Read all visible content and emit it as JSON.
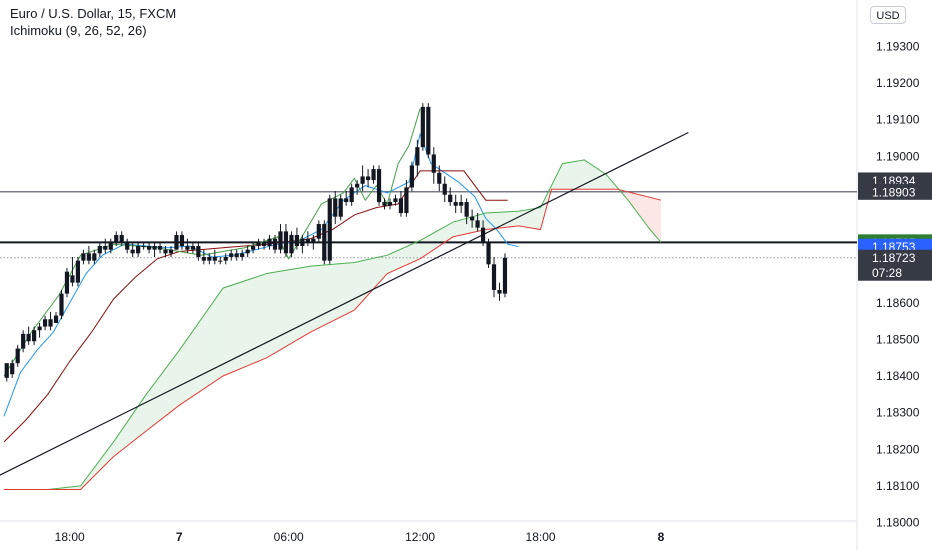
{
  "header": {
    "symbol": "Euro / U.S. Dollar, 15, FXCM",
    "indicator": "Ichimoku (9, 26, 52, 26)"
  },
  "currency_button": "USD",
  "price_labels": [
    {
      "text": "1.18934",
      "kind": "dark",
      "value": 1.18934
    },
    {
      "text": "1.18903",
      "kind": "dark",
      "value": 1.18903
    },
    {
      "text": "1.18765",
      "kind": "green",
      "value": 1.18765
    },
    {
      "text": "1.18753",
      "kind": "blue",
      "value": 1.18753
    },
    {
      "text": "1.18723",
      "kind": "dark",
      "value": 1.18723
    },
    {
      "text": "07:28",
      "kind": "dark-sub",
      "value": 1.18723
    }
  ],
  "colors": {
    "bull": "#131722",
    "bear": "#131722",
    "tenkan": "#2196f3",
    "kijun": "#880e0e",
    "chikou": "#43a047",
    "spanA": "#4caf50",
    "spanB": "#e53935",
    "cloud_up": "rgba(76,175,80,0.12)",
    "cloud_down": "rgba(229,57,53,0.12)",
    "label_dark": "#363a45",
    "label_green": "#2e7d32",
    "label_blue": "#2962ff"
  },
  "chart_data": {
    "type": "candlestick",
    "title": "Euro / U.S. Dollar, 15, FXCM",
    "ylim": [
      1.18,
      1.194
    ],
    "y_ticks": [
      "1.18000",
      "1.18100",
      "1.18200",
      "1.18300",
      "1.18400",
      "1.18500",
      "1.18600",
      "1.19000",
      "1.19100",
      "1.19200",
      "1.19300"
    ],
    "x_ticks": [
      {
        "label": "18:00",
        "bar": 12
      },
      {
        "label": "7",
        "bar": 32
      },
      {
        "label": "06:00",
        "bar": 52
      },
      {
        "label": "12:00",
        "bar": 76
      },
      {
        "label": "18:00",
        "bar": 98
      },
      {
        "label": "8",
        "bar": 120
      }
    ],
    "candles": [
      [
        1.18395,
        1.18435,
        1.18385,
        1.18435
      ],
      [
        1.18405,
        1.18445,
        1.18395,
        1.18435
      ],
      [
        1.18435,
        1.18485,
        1.18425,
        1.18475
      ],
      [
        1.18475,
        1.18525,
        1.18465,
        1.18515
      ],
      [
        1.18515,
        1.18535,
        1.18485,
        1.18495
      ],
      [
        1.18495,
        1.18535,
        1.18485,
        1.18525
      ],
      [
        1.18525,
        1.18545,
        1.18505,
        1.18535
      ],
      [
        1.18535,
        1.18565,
        1.18525,
        1.18555
      ],
      [
        1.18555,
        1.18575,
        1.18525,
        1.18535
      ],
      [
        1.18545,
        1.18575,
        1.18545,
        1.18565
      ],
      [
        1.18565,
        1.18635,
        1.18555,
        1.18625
      ],
      [
        1.18625,
        1.18695,
        1.18615,
        1.18685
      ],
      [
        1.18675,
        1.18725,
        1.18645,
        1.18655
      ],
      [
        1.18655,
        1.18725,
        1.18645,
        1.18715
      ],
      [
        1.18715,
        1.18745,
        1.18705,
        1.18735
      ],
      [
        1.18735,
        1.18755,
        1.18705,
        1.18715
      ],
      [
        1.18715,
        1.18745,
        1.18705,
        1.18735
      ],
      [
        1.18735,
        1.18765,
        1.18725,
        1.18755
      ],
      [
        1.18755,
        1.18775,
        1.18735,
        1.18745
      ],
      [
        1.18745,
        1.18775,
        1.18735,
        1.18765
      ],
      [
        1.18765,
        1.18795,
        1.18755,
        1.18785
      ],
      [
        1.18785,
        1.18795,
        1.18755,
        1.18765
      ],
      [
        1.18765,
        1.18775,
        1.18735,
        1.18745
      ],
      [
        1.18745,
        1.18765,
        1.18725,
        1.18735
      ],
      [
        1.18735,
        1.18765,
        1.18725,
        1.18755
      ],
      [
        1.18755,
        1.18765,
        1.18745,
        1.18755
      ],
      [
        1.18755,
        1.18765,
        1.18735,
        1.18745
      ],
      [
        1.18745,
        1.18765,
        1.18725,
        1.18755
      ],
      [
        1.18755,
        1.18765,
        1.18735,
        1.18745
      ],
      [
        1.18745,
        1.18755,
        1.18725,
        1.18735
      ],
      [
        1.18735,
        1.18755,
        1.18725,
        1.18745
      ],
      [
        1.18745,
        1.18795,
        1.18745,
        1.18785
      ],
      [
        1.18785,
        1.18795,
        1.18745,
        1.18755
      ],
      [
        1.18755,
        1.18775,
        1.18735,
        1.18745
      ],
      [
        1.18745,
        1.18765,
        1.18735,
        1.18755
      ],
      [
        1.18755,
        1.18765,
        1.18715,
        1.18725
      ],
      [
        1.18725,
        1.18745,
        1.18705,
        1.18715
      ],
      [
        1.18715,
        1.18735,
        1.18705,
        1.18725
      ],
      [
        1.18725,
        1.18745,
        1.18705,
        1.18715
      ],
      [
        1.18715,
        1.18725,
        1.18705,
        1.18715
      ],
      [
        1.18715,
        1.18735,
        1.18705,
        1.18725
      ],
      [
        1.18725,
        1.18745,
        1.18715,
        1.18735
      ],
      [
        1.18735,
        1.18745,
        1.18715,
        1.18725
      ],
      [
        1.18725,
        1.18745,
        1.18715,
        1.18735
      ],
      [
        1.18735,
        1.18755,
        1.18725,
        1.18745
      ],
      [
        1.18745,
        1.18765,
        1.18735,
        1.18755
      ],
      [
        1.18755,
        1.18775,
        1.18745,
        1.18765
      ],
      [
        1.18765,
        1.18775,
        1.18745,
        1.18755
      ],
      [
        1.18755,
        1.18785,
        1.18745,
        1.18775
      ],
      [
        1.18775,
        1.18785,
        1.18735,
        1.18745
      ],
      [
        1.18745,
        1.18815,
        1.18735,
        1.18795
      ],
      [
        1.18795,
        1.18815,
        1.18725,
        1.18735
      ],
      [
        1.18735,
        1.18795,
        1.18725,
        1.18785
      ],
      [
        1.18785,
        1.18805,
        1.18745,
        1.18755
      ],
      [
        1.18755,
        1.18785,
        1.18735,
        1.18775
      ],
      [
        1.18775,
        1.18795,
        1.18755,
        1.18765
      ],
      [
        1.18765,
        1.18785,
        1.18745,
        1.18775
      ],
      [
        1.18775,
        1.18825,
        1.18765,
        1.18815
      ],
      [
        1.18815,
        1.18825,
        1.18705,
        1.18715
      ],
      [
        1.18715,
        1.18895,
        1.18705,
        1.18885
      ],
      [
        1.18885,
        1.18905,
        1.18815,
        1.18835
      ],
      [
        1.18835,
        1.18895,
        1.18825,
        1.18885
      ],
      [
        1.18885,
        1.18905,
        1.18865,
        1.18875
      ],
      [
        1.18875,
        1.18925,
        1.18865,
        1.18915
      ],
      [
        1.18915,
        1.18935,
        1.18895,
        1.18925
      ],
      [
        1.18925,
        1.18975,
        1.18905,
        1.18945
      ],
      [
        1.18945,
        1.18965,
        1.18915,
        1.18935
      ],
      [
        1.18935,
        1.18975,
        1.18925,
        1.18965
      ],
      [
        1.18965,
        1.18975,
        1.18865,
        1.18875
      ],
      [
        1.18875,
        1.18885,
        1.18855,
        1.18865
      ],
      [
        1.18865,
        1.18885,
        1.18855,
        1.18875
      ],
      [
        1.18875,
        1.18895,
        1.18865,
        1.18885
      ],
      [
        1.18885,
        1.18905,
        1.18835,
        1.18845
      ],
      [
        1.18845,
        1.18935,
        1.18835,
        1.18915
      ],
      [
        1.18915,
        1.18985,
        1.18905,
        1.18975
      ],
      [
        1.18975,
        1.19045,
        1.18945,
        1.19025
      ],
      [
        1.19025,
        1.19145,
        1.19015,
        1.19135
      ],
      [
        1.19135,
        1.19145,
        1.18995,
        1.19005
      ],
      [
        1.19005,
        1.19025,
        1.18925,
        1.18955
      ],
      [
        1.18955,
        1.18975,
        1.18905,
        1.18925
      ],
      [
        1.18925,
        1.18945,
        1.18875,
        1.18895
      ],
      [
        1.18895,
        1.18915,
        1.18865,
        1.18875
      ],
      [
        1.18875,
        1.18895,
        1.18845,
        1.18865
      ],
      [
        1.18865,
        1.18895,
        1.18845,
        1.18875
      ],
      [
        1.18875,
        1.18885,
        1.18815,
        1.18835
      ],
      [
        1.18835,
        1.18855,
        1.18805,
        1.18825
      ],
      [
        1.18825,
        1.18845,
        1.18795,
        1.18805
      ],
      [
        1.18805,
        1.18825,
        1.18755,
        1.18765
      ],
      [
        1.18765,
        1.18775,
        1.18695,
        1.18705
      ],
      [
        1.18705,
        1.18725,
        1.18615,
        1.18635
      ],
      [
        1.18635,
        1.18655,
        1.18605,
        1.18625
      ],
      [
        1.18625,
        1.18735,
        1.18615,
        1.18723
      ]
    ],
    "series": [
      {
        "name": "tenkan",
        "color": "#2196f3",
        "points": [
          [
            0,
            1.1829
          ],
          [
            3,
            1.1841
          ],
          [
            6,
            1.1847
          ],
          [
            9,
            1.1852
          ],
          [
            12,
            1.186
          ],
          [
            15,
            1.1868
          ],
          [
            18,
            1.1873
          ],
          [
            22,
            1.1876
          ],
          [
            26,
            1.18755
          ],
          [
            30,
            1.1875
          ],
          [
            34,
            1.18755
          ],
          [
            38,
            1.18725
          ],
          [
            42,
            1.1873
          ],
          [
            46,
            1.18745
          ],
          [
            50,
            1.1876
          ],
          [
            54,
            1.1877
          ],
          [
            58,
            1.188
          ],
          [
            62,
            1.1888
          ],
          [
            66,
            1.1892
          ],
          [
            70,
            1.189
          ],
          [
            74,
            1.1893
          ],
          [
            76,
            1.1906
          ],
          [
            78,
            1.1898
          ],
          [
            80,
            1.1896
          ],
          [
            83,
            1.1893
          ],
          [
            86,
            1.1889
          ],
          [
            88,
            1.1883
          ],
          [
            90,
            1.188
          ],
          [
            92,
            1.1876
          ],
          [
            94,
            1.18753
          ]
        ]
      },
      {
        "name": "kijun",
        "color": "#880e0e",
        "points": [
          [
            0,
            1.1822
          ],
          [
            4,
            1.1828
          ],
          [
            8,
            1.1835
          ],
          [
            12,
            1.1844
          ],
          [
            16,
            1.1852
          ],
          [
            20,
            1.1861
          ],
          [
            24,
            1.1867
          ],
          [
            28,
            1.1872
          ],
          [
            32,
            1.1874
          ],
          [
            40,
            1.1875
          ],
          [
            48,
            1.1876
          ],
          [
            56,
            1.18775
          ],
          [
            60,
            1.188
          ],
          [
            64,
            1.1884
          ],
          [
            68,
            1.1886
          ],
          [
            72,
            1.1887
          ],
          [
            76,
            1.1896
          ],
          [
            80,
            1.1896
          ],
          [
            84,
            1.1896
          ],
          [
            88,
            1.1888
          ],
          [
            92,
            1.1888
          ]
        ]
      },
      {
        "name": "chikou",
        "color": "#43a047",
        "points": [
          [
            0,
            1.184
          ],
          [
            5,
            1.1852
          ],
          [
            10,
            1.1862
          ],
          [
            14,
            1.1873
          ],
          [
            20,
            1.1876
          ],
          [
            28,
            1.1875
          ],
          [
            36,
            1.1873
          ],
          [
            44,
            1.1875
          ],
          [
            50,
            1.1878
          ],
          [
            52,
            1.1872
          ],
          [
            56,
            1.1882
          ],
          [
            58,
            1.1887
          ],
          [
            62,
            1.189
          ],
          [
            64,
            1.1894
          ],
          [
            66,
            1.1888
          ],
          [
            68,
            1.1892
          ],
          [
            70,
            1.1887
          ],
          [
            72,
            1.1898
          ],
          [
            74,
            1.1903
          ],
          [
            76,
            1.1913
          ]
        ]
      },
      {
        "name": "spanA",
        "color": "#4caf50",
        "points": [
          [
            0,
            1.1809
          ],
          [
            8,
            1.1809
          ],
          [
            14,
            1.181
          ],
          [
            20,
            1.1822
          ],
          [
            26,
            1.1835
          ],
          [
            32,
            1.1847
          ],
          [
            40,
            1.1864
          ],
          [
            48,
            1.1868
          ],
          [
            56,
            1.187
          ],
          [
            64,
            1.1871
          ],
          [
            70,
            1.1873
          ],
          [
            76,
            1.1877
          ],
          [
            82,
            1.1882
          ],
          [
            88,
            1.18845
          ],
          [
            94,
            1.1885
          ],
          [
            98,
            1.1886
          ],
          [
            102,
            1.1898
          ],
          [
            106,
            1.1899
          ],
          [
            110,
            1.1895
          ],
          [
            114,
            1.1888
          ],
          [
            118,
            1.188
          ],
          [
            120,
            1.18765
          ]
        ]
      },
      {
        "name": "spanB",
        "color": "#e53935",
        "points": [
          [
            0,
            1.1809
          ],
          [
            14,
            1.1809
          ],
          [
            20,
            1.1818
          ],
          [
            26,
            1.1825
          ],
          [
            32,
            1.1832
          ],
          [
            40,
            1.184
          ],
          [
            48,
            1.1845
          ],
          [
            56,
            1.1852
          ],
          [
            64,
            1.1858
          ],
          [
            70,
            1.1868
          ],
          [
            76,
            1.1872
          ],
          [
            82,
            1.1878
          ],
          [
            88,
            1.188
          ],
          [
            94,
            1.1881
          ],
          [
            98,
            1.188
          ],
          [
            100,
            1.1891
          ],
          [
            106,
            1.1891
          ],
          [
            112,
            1.1891
          ],
          [
            120,
            1.1888
          ]
        ]
      }
    ],
    "horizontal_lines": [
      {
        "value": 1.18903,
        "color": "#787b86",
        "width": 1.5
      },
      {
        "value": 1.18765,
        "color": "#131722",
        "width": 2
      },
      {
        "value": 1.18723,
        "color": "#9598a1",
        "width": 1,
        "dashed": true
      }
    ],
    "trend_line": {
      "from": [
        -2,
        1.1812
      ],
      "to": [
        125,
        1.19065
      ]
    }
  }
}
